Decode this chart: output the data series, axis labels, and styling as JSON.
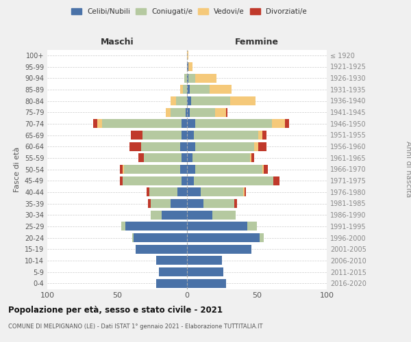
{
  "age_groups": [
    "0-4",
    "5-9",
    "10-14",
    "15-19",
    "20-24",
    "25-29",
    "30-34",
    "35-39",
    "40-44",
    "45-49",
    "50-54",
    "55-59",
    "60-64",
    "65-69",
    "70-74",
    "75-79",
    "80-84",
    "85-89",
    "90-94",
    "95-99",
    "100+"
  ],
  "birth_years": [
    "2016-2020",
    "2011-2015",
    "2006-2010",
    "2001-2005",
    "1996-2000",
    "1991-1995",
    "1986-1990",
    "1981-1985",
    "1976-1980",
    "1971-1975",
    "1966-1970",
    "1961-1965",
    "1956-1960",
    "1951-1955",
    "1946-1950",
    "1941-1945",
    "1936-1940",
    "1931-1935",
    "1926-1930",
    "1921-1925",
    "≤ 1920"
  ],
  "colors": {
    "celibi": "#4a72a8",
    "coniugati": "#b5c9a0",
    "vedovi": "#f5c97a",
    "divorziati": "#c0392b"
  },
  "maschi": {
    "celibi": [
      22,
      20,
      22,
      37,
      38,
      44,
      18,
      12,
      7,
      4,
      5,
      4,
      5,
      4,
      4,
      1,
      0,
      0,
      0,
      0,
      0
    ],
    "coniugati": [
      0,
      0,
      0,
      0,
      1,
      3,
      8,
      14,
      20,
      42,
      40,
      27,
      28,
      28,
      57,
      11,
      8,
      3,
      2,
      0,
      0
    ],
    "vedovi": [
      0,
      0,
      0,
      0,
      0,
      0,
      0,
      0,
      0,
      0,
      1,
      0,
      0,
      0,
      3,
      3,
      4,
      2,
      0,
      0,
      0
    ],
    "divorziati": [
      0,
      0,
      0,
      0,
      0,
      0,
      0,
      2,
      2,
      2,
      2,
      4,
      8,
      8,
      3,
      0,
      0,
      0,
      0,
      0,
      0
    ]
  },
  "femmine": {
    "celibi": [
      28,
      26,
      25,
      46,
      52,
      43,
      18,
      12,
      10,
      5,
      6,
      4,
      6,
      5,
      6,
      2,
      3,
      2,
      1,
      1,
      0
    ],
    "coniugati": [
      0,
      0,
      0,
      0,
      3,
      7,
      17,
      22,
      30,
      57,
      48,
      41,
      42,
      46,
      55,
      18,
      28,
      14,
      5,
      0,
      0
    ],
    "vedovi": [
      0,
      0,
      0,
      0,
      0,
      0,
      0,
      0,
      1,
      0,
      1,
      1,
      3,
      3,
      9,
      8,
      18,
      16,
      15,
      3,
      1
    ],
    "divorziati": [
      0,
      0,
      0,
      0,
      0,
      0,
      0,
      2,
      1,
      4,
      3,
      2,
      6,
      3,
      3,
      1,
      0,
      0,
      0,
      0,
      0
    ]
  },
  "title": "Popolazione per età, sesso e stato civile - 2021",
  "subtitle": "COMUNE DI MELPIGNANO (LE) - Dati ISTAT 1° gennaio 2021 - Elaborazione TUTTITALIA.IT",
  "xlabel_maschi": "Maschi",
  "xlabel_femmine": "Femmine",
  "ylabel_left": "Fasce di età",
  "ylabel_right": "Anni di nascita",
  "xlim": 100,
  "legend_labels": [
    "Celibi/Nubili",
    "Coniugati/e",
    "Vedovi/e",
    "Divorziati/e"
  ],
  "background_color": "#f0f0f0",
  "plot_background": "#ffffff"
}
